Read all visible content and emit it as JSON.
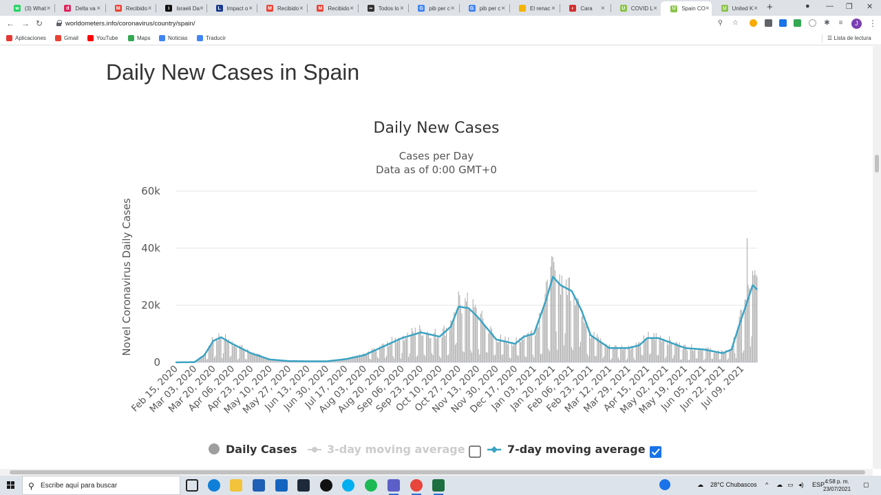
{
  "browser": {
    "tabs": [
      {
        "title": "(3) What",
        "icon_color": "#25d366",
        "icon_glyph": "w"
      },
      {
        "title": "Delta va",
        "icon_color": "#e0245e",
        "icon_glyph": "d"
      },
      {
        "title": "Recibido",
        "icon_color": "#ea4335",
        "icon_glyph": "M"
      },
      {
        "title": "Israeli Da",
        "icon_color": "#111111",
        "icon_glyph": "i"
      },
      {
        "title": "Impact o",
        "icon_color": "#1a3c8f",
        "icon_glyph": "L"
      },
      {
        "title": "Recibido",
        "icon_color": "#ea4335",
        "icon_glyph": "M"
      },
      {
        "title": "Recibido",
        "icon_color": "#ea4335",
        "icon_glyph": "M"
      },
      {
        "title": "Todos lo",
        "icon_color": "#333333",
        "icon_glyph": "∞"
      },
      {
        "title": "pib per c",
        "icon_color": "#4285f4",
        "icon_glyph": "G"
      },
      {
        "title": "pib per c",
        "icon_color": "#4285f4",
        "icon_glyph": "G"
      },
      {
        "title": "El renac",
        "icon_color": "#f4b400",
        "icon_glyph": ""
      },
      {
        "title": "Cara",
        "icon_color": "#d32f2f",
        "icon_glyph": "◐"
      },
      {
        "title": "COVID L",
        "icon_color": "#8bc34a",
        "icon_glyph": "U"
      },
      {
        "title": "Spain CO",
        "icon_color": "#8bc34a",
        "icon_glyph": "U",
        "active": true
      },
      {
        "title": "United K",
        "icon_color": "#8bc34a",
        "icon_glyph": "U"
      }
    ],
    "url": "worldometers.info/coronavirus/country/spain/",
    "bookmarks": [
      {
        "label": "Aplicaciones",
        "color": "#e53935"
      },
      {
        "label": "Gmail",
        "color": "#ea4335"
      },
      {
        "label": "YouTube",
        "color": "#ff0000"
      },
      {
        "label": "Maps",
        "color": "#34a853"
      },
      {
        "label": "Noticias",
        "color": "#4285f4"
      },
      {
        "label": "Traducir",
        "color": "#4285f4"
      }
    ],
    "reading_list": "Lista de lectura"
  },
  "page": {
    "heading": "Daily New Cases in Spain"
  },
  "chart_data": {
    "type": "bar",
    "title": "Daily New Cases",
    "subtitle_line1": "Cases per Day",
    "subtitle_line2": "Data as of 0:00 GMT+0",
    "ylabel": "Novel Coronavirus Daily Cases",
    "ylim": [
      0,
      60000
    ],
    "yticks": [
      "0",
      "20k",
      "40k",
      "60k"
    ],
    "ytick_values": [
      0,
      20000,
      40000,
      60000
    ],
    "x_tick_labels": [
      "Feb 15, 2020",
      "Mar 03, 2020",
      "Mar 20, 2020",
      "Apr 06, 2020",
      "Apr 23, 2020",
      "May 10, 2020",
      "May 27, 2020",
      "Jun 13, 2020",
      "Jun 30, 2020",
      "Jul 17, 2020",
      "Aug 03, 2020",
      "Aug 20, 2020",
      "Sep 06, 2020",
      "Sep 23, 2020",
      "Oct 10, 2020",
      "Oct 27, 2020",
      "Nov 13, 2020",
      "Nov 30, 2020",
      "Dec 17, 2020",
      "Jan 03, 2021",
      "Jan 20, 2021",
      "Feb 06, 2021",
      "Feb 23, 2021",
      "Mar 12, 2021",
      "Mar 29, 2021",
      "Apr 15, 2021",
      "May 02, 2021",
      "May 19, 2021",
      "Jun 05, 2021",
      "Jun 22, 2021",
      "Jul 09, 2021"
    ],
    "x_start": "2020-02-15",
    "x_end": "2021-07-23",
    "avg7_points": [
      [
        "2020-02-15",
        0
      ],
      [
        "2020-03-03",
        50
      ],
      [
        "2020-03-12",
        2500
      ],
      [
        "2020-03-20",
        7500
      ],
      [
        "2020-03-27",
        8800
      ],
      [
        "2020-04-06",
        6500
      ],
      [
        "2020-04-23",
        3200
      ],
      [
        "2020-05-10",
        1000
      ],
      [
        "2020-05-27",
        450
      ],
      [
        "2020-06-13",
        350
      ],
      [
        "2020-06-30",
        350
      ],
      [
        "2020-07-17",
        1100
      ],
      [
        "2020-08-03",
        2500
      ],
      [
        "2020-08-20",
        5500
      ],
      [
        "2020-09-06",
        8500
      ],
      [
        "2020-09-23",
        10500
      ],
      [
        "2020-10-10",
        9000
      ],
      [
        "2020-10-20",
        12500
      ],
      [
        "2020-10-27",
        19500
      ],
      [
        "2020-11-05",
        19000
      ],
      [
        "2020-11-13",
        16000
      ],
      [
        "2020-11-30",
        8000
      ],
      [
        "2020-12-17",
        6500
      ],
      [
        "2020-12-25",
        9000
      ],
      [
        "2021-01-03",
        10000
      ],
      [
        "2021-01-14",
        22000
      ],
      [
        "2021-01-20",
        30000
      ],
      [
        "2021-01-27",
        27000
      ],
      [
        "2021-02-06",
        25000
      ],
      [
        "2021-02-15",
        18000
      ],
      [
        "2021-02-23",
        9500
      ],
      [
        "2021-03-12",
        5000
      ],
      [
        "2021-03-29",
        5000
      ],
      [
        "2021-04-08",
        6000
      ],
      [
        "2021-04-15",
        8500
      ],
      [
        "2021-04-25",
        8500
      ],
      [
        "2021-05-02",
        7500
      ],
      [
        "2021-05-19",
        5000
      ],
      [
        "2021-06-05",
        4500
      ],
      [
        "2021-06-22",
        3200
      ],
      [
        "2021-06-30",
        4500
      ],
      [
        "2021-07-06",
        12000
      ],
      [
        "2021-07-13",
        20000
      ],
      [
        "2021-07-19",
        27000
      ],
      [
        "2021-07-23",
        25500
      ]
    ],
    "spikes": [
      [
        "2021-07-14",
        43500
      ],
      [
        "2021-07-20",
        30500
      ],
      [
        "2021-07-23",
        30000
      ]
    ],
    "legend": {
      "daily_cases": "Daily Cases",
      "avg3": "3-day moving average",
      "avg7": "7-day moving average",
      "avg3_checked": false,
      "avg7_checked": true
    },
    "colors": {
      "bars": "#a5a5a5",
      "line": "#3aa3c3",
      "grid": "#e6e6e6",
      "disabled": "#cccccc",
      "checkbox": "#1a73e8"
    }
  },
  "taskbar": {
    "search_placeholder": "Escribe aquí para buscar",
    "weather": "28°C Chubascos",
    "lang": "ESP",
    "time": "4:58 p. m.",
    "date": "23/07/2021"
  }
}
